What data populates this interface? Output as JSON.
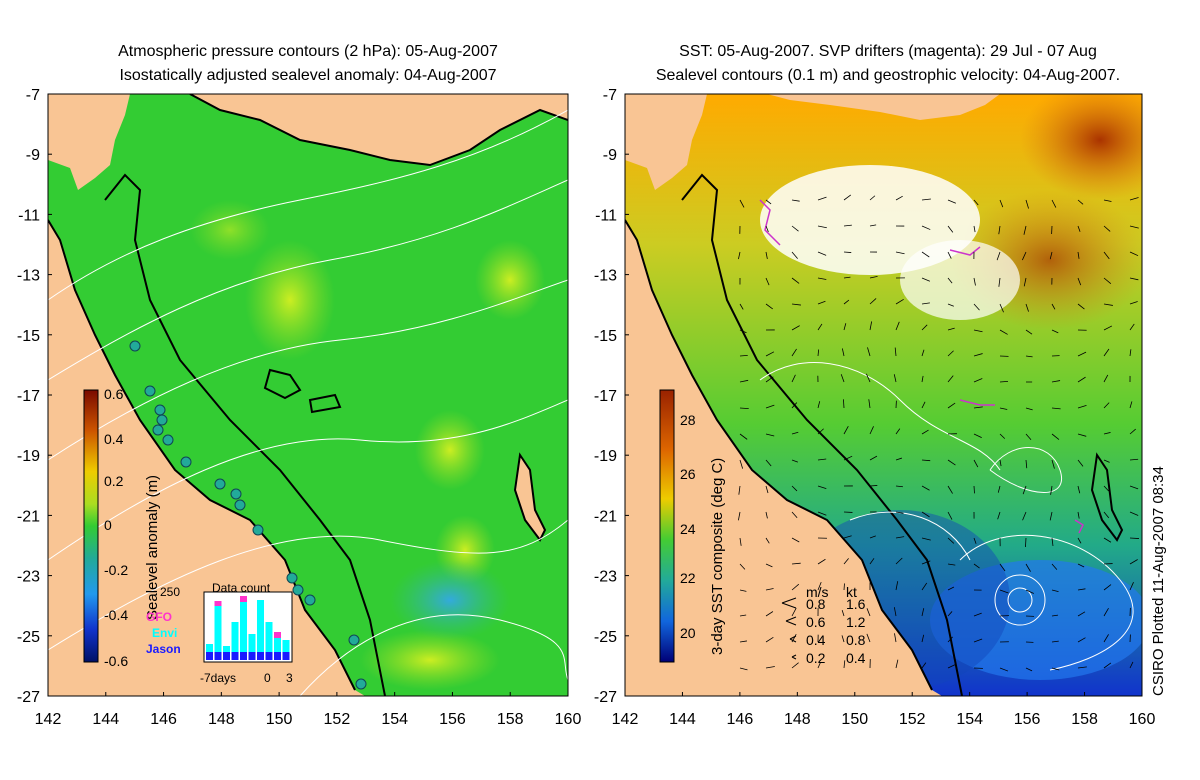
{
  "left_panel": {
    "title_line1": "Atmospheric pressure contours (2 hPa): 05-Aug-2007",
    "title_line2": "Isostatically adjusted sealevel anomaly: 04-Aug-2007",
    "colorbar_label": "Sealevel anomaly (m)",
    "colorbar_ticks": [
      "0.6",
      "0.4",
      "0.2",
      "0",
      "-0.2",
      "-0.4",
      "-0.6"
    ],
    "inset": {
      "title": "Data count",
      "ymax_label": "250",
      "legend": [
        {
          "name": "GFO",
          "color": "#ff33cc"
        },
        {
          "name": "Envi",
          "color": "#00ffff"
        },
        {
          "name": "Jason",
          "color": "#1a1aff"
        }
      ],
      "xlabels": [
        "-7days",
        "0",
        "3"
      ]
    }
  },
  "right_panel": {
    "title_line1": "SST: 05-Aug-2007. SVP drifters (magenta): 29 Jul - 07 Aug",
    "title_line2": "Sealevel contours (0.1 m) and geostrophic velocity: 04-Aug-2007.",
    "colorbar_label": "3-day SST composite (deg C)",
    "colorbar_ticks": [
      "28",
      "26",
      "24",
      "22",
      "20"
    ],
    "velocity_legend": {
      "header_ms": "m/s",
      "header_kt": "kt",
      "rows": [
        {
          "ms": "0.8",
          "kt": "1.6"
        },
        {
          "ms": "0.6",
          "kt": "1.2"
        },
        {
          "ms": "0.4",
          "kt": "0.8"
        },
        {
          "ms": "0.2",
          "kt": "0.4"
        }
      ]
    },
    "credit": "CSIRO Plotted 11-Aug-2007 08:34"
  },
  "axes": {
    "y_ticks": [
      "-7",
      "-9",
      "-11",
      "-13",
      "-15",
      "-17",
      "-19",
      "-21",
      "-23",
      "-25",
      "-27"
    ],
    "x_ticks": [
      "142",
      "144",
      "146",
      "148",
      "150",
      "152",
      "154",
      "156",
      "158",
      "160"
    ]
  },
  "colors": {
    "land": "#f9c594",
    "sla_background": "#33cc33",
    "coast": "#000000",
    "contour": "#ffffff",
    "drifter": "#cc33cc"
  }
}
